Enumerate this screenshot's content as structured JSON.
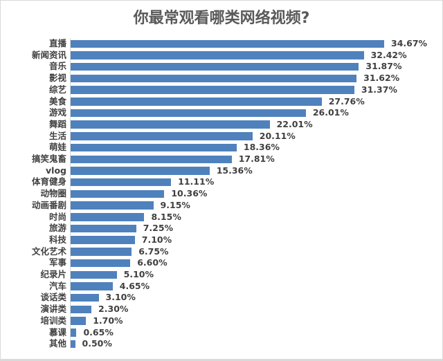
{
  "chart_data": {
    "type": "bar",
    "orientation": "horizontal",
    "title": "你最常观看哪类网络视频?",
    "xlabel": "",
    "ylabel": "",
    "grid": false,
    "legend": null,
    "bar_color": "#4f81bd",
    "value_format": "percent",
    "categories": [
      "直播",
      "新闻资讯",
      "音乐",
      "影视",
      "综艺",
      "美食",
      "游戏",
      "舞蹈",
      "生活",
      "萌娃",
      "搞笑鬼畜",
      "vlog",
      "体育健身",
      "动物圈",
      "动画番剧",
      "时尚",
      "旅游",
      "科技",
      "文化艺术",
      "军事",
      "纪录片",
      "汽车",
      "谈话类",
      "演讲类",
      "培训类",
      "慕课",
      "其他"
    ],
    "values": [
      34.67,
      32.42,
      31.87,
      31.62,
      31.37,
      27.76,
      26.01,
      22.01,
      20.11,
      18.36,
      17.81,
      15.36,
      11.11,
      10.36,
      9.15,
      8.15,
      7.25,
      7.1,
      6.75,
      6.6,
      5.1,
      4.65,
      3.1,
      2.3,
      1.7,
      0.65,
      0.5
    ],
    "labels": [
      "34.67%",
      "32.42%",
      "31.87%",
      "31.62%",
      "31.37%",
      "27.76%",
      "26.01%",
      "22.01%",
      "20.11%",
      "18.36%",
      "17.81%",
      "15.36%",
      "11.11%",
      "10.36%",
      "9.15%",
      "8.15%",
      "7.25%",
      "7.10%",
      "6.75%",
      "6.60%",
      "5.10%",
      "4.65%",
      "3.10%",
      "2.30%",
      "1.70%",
      "0.65%",
      "0.50%"
    ],
    "xlim": [
      0,
      35
    ]
  }
}
